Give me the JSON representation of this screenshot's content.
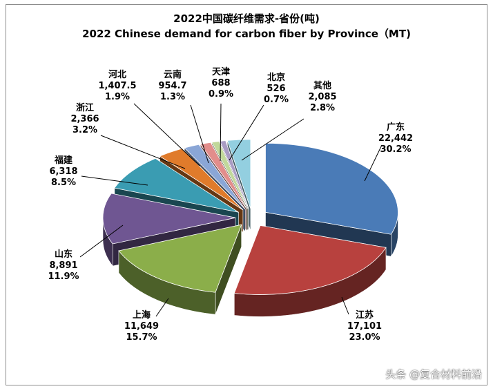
{
  "chart_data": {
    "type": "pie",
    "title": "2022中国碳纤维需求-省份(吨)",
    "subtitle": "2022 Chinese demand for carbon fiber by Province（MT)",
    "slices": [
      {
        "label": "广东",
        "value": "22,442",
        "percent": "30.2%",
        "share": 30.2,
        "color": "#4a7bb7"
      },
      {
        "label": "江苏",
        "value": "17,101",
        "percent": "23.0%",
        "share": 23.0,
        "color": "#b8413e"
      },
      {
        "label": "上海",
        "value": "11,649",
        "percent": "15.7%",
        "share": 15.7,
        "color": "#8bae4a"
      },
      {
        "label": "山东",
        "value": "8,891",
        "percent": "11.9%",
        "share": 11.9,
        "color": "#6f5692"
      },
      {
        "label": "福建",
        "value": "6,318",
        "percent": "8.5%",
        "share": 8.5,
        "color": "#3a9cb2"
      },
      {
        "label": "浙江",
        "value": "2,366",
        "percent": "3.2%",
        "share": 3.2,
        "color": "#e07b2b"
      },
      {
        "label": "河北",
        "value": "1,407.5",
        "percent": "1.9%",
        "share": 1.9,
        "color": "#8aa6d6"
      },
      {
        "label": "云南",
        "value": "954.7",
        "percent": "1.3%",
        "share": 1.3,
        "color": "#e28d8b"
      },
      {
        "label": "天津",
        "value": "688",
        "percent": "0.9%",
        "share": 0.9,
        "color": "#c1d89a"
      },
      {
        "label": "北京",
        "value": "526",
        "percent": "0.7%",
        "share": 0.7,
        "color": "#a99cc4"
      },
      {
        "label": "其他",
        "value": "2,085",
        "percent": "2.8%",
        "share": 2.8,
        "color": "#93cfe0"
      }
    ]
  },
  "watermark": "头条 @复合材料前沿"
}
